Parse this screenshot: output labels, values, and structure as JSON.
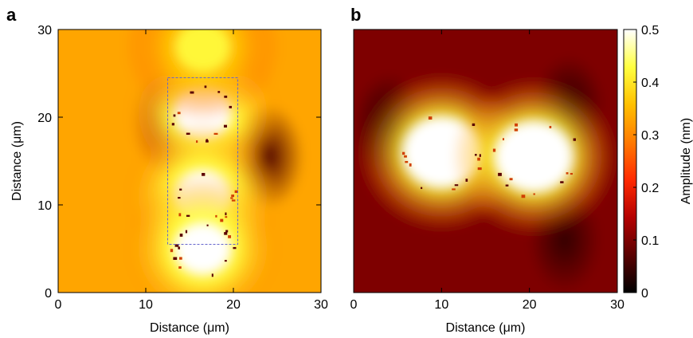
{
  "chart_data": [
    {
      "type": "heatmap",
      "panel": "a",
      "xlabel": "Distance (μm)",
      "ylabel": "Distance (μm)",
      "xlim": [
        0,
        30
      ],
      "ylim": [
        0,
        30
      ],
      "xticks": [
        "0",
        "10",
        "20",
        "30"
      ],
      "yticks": [
        "0",
        "10",
        "20",
        "30"
      ],
      "features": {
        "background_amplitude_nm": 0.33,
        "bright_spots": [
          {
            "x": 16.5,
            "y": 20.5,
            "amplitude_nm": 0.5
          },
          {
            "x": 16.5,
            "y": 11.0,
            "amplitude_nm": 0.5
          },
          {
            "x": 16.5,
            "y": 5.0,
            "amplitude_nm": 0.5
          },
          {
            "x": 16.5,
            "y": 28.0,
            "amplitude_nm": 0.42
          }
        ],
        "dark_spots": [
          {
            "x": 24.0,
            "y": 15.5,
            "amplitude_nm": 0.06
          },
          {
            "x": 12.5,
            "y": 19.5,
            "amplitude_nm": 0.12
          }
        ],
        "dashed_rectangle": {
          "x": [
            12.5,
            20.5
          ],
          "y": [
            5.5,
            24.5
          ]
        }
      }
    },
    {
      "type": "heatmap",
      "panel": "b",
      "xlabel": "Distance (μm)",
      "xlim": [
        0,
        30
      ],
      "ylim": [
        0,
        30
      ],
      "xticks": [
        "0",
        "10",
        "20",
        "30"
      ],
      "features": {
        "background_amplitude_nm": 0.1,
        "bright_spots": [
          {
            "x": 10.0,
            "y": 16.0,
            "amplitude_nm": 0.5
          },
          {
            "x": 20.5,
            "y": 15.5,
            "amplitude_nm": 0.5
          }
        ],
        "dark_spots": [
          {
            "x": 4.0,
            "y": 19.0,
            "amplitude_nm": 0.03
          },
          {
            "x": 24.5,
            "y": 21.0,
            "amplitude_nm": 0.03
          },
          {
            "x": 24.0,
            "y": 6.0,
            "amplitude_nm": 0.04
          }
        ]
      }
    }
  ],
  "colorbar": {
    "label": "Amplitude (nm)",
    "range": [
      0,
      0.5
    ],
    "ticks": [
      "0",
      "0.1",
      "0.2",
      "0.3",
      "0.4",
      "0.5"
    ],
    "colors": [
      "#000000",
      "#5a0000",
      "#b40000",
      "#ff2a00",
      "#ff7a00",
      "#ffc000",
      "#ffff40",
      "#ffffff"
    ]
  },
  "panel_labels": {
    "a": "a",
    "b": "b"
  }
}
